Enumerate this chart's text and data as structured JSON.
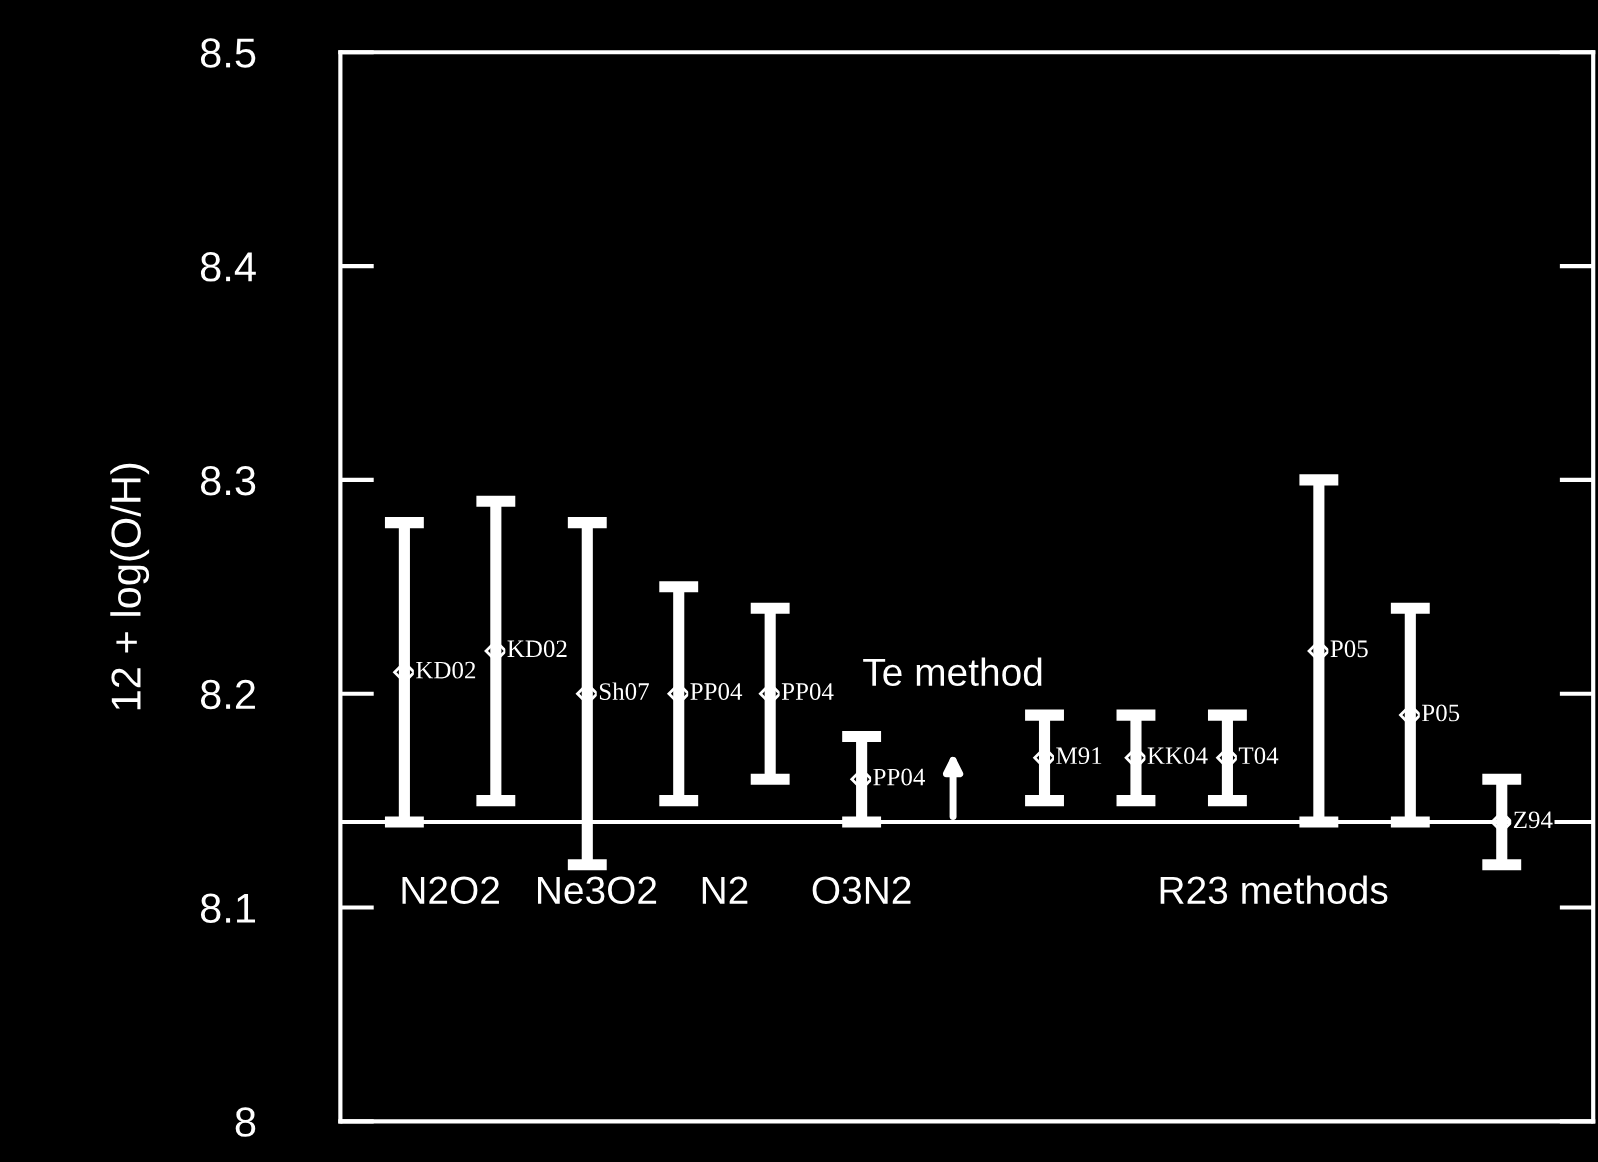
{
  "chart_data": {
    "type": "scatter",
    "ylabel": "12 + log(O/H)",
    "categories": [
      null,
      null,
      null,
      null,
      null,
      null,
      null,
      null,
      null,
      null,
      null,
      null,
      null
    ],
    "series": [
      {
        "color": "#ffffff",
        "values": [
          8.21,
          8.22,
          8.2,
          8.2,
          8.2,
          8.16,
          null,
          8.17,
          8.17,
          8.17,
          8.22,
          8.19,
          8.14
        ],
        "errors": [
          [
            8.14,
            8.28
          ],
          [
            8.15,
            8.29
          ],
          [
            8.12,
            8.28
          ],
          [
            8.15,
            8.25
          ],
          [
            8.16,
            8.24
          ],
          [
            8.14,
            8.18
          ],
          null,
          [
            8.15,
            8.19
          ],
          [
            8.15,
            8.19
          ],
          [
            8.15,
            8.19
          ],
          [
            8.14,
            8.3
          ],
          [
            8.14,
            8.24
          ],
          [
            8.12,
            8.16
          ]
        ],
        "value_labels": [
          "KD02",
          "KD02",
          "Sh07",
          "PP04",
          "PP04",
          "PP04",
          null,
          "M91",
          "KK04",
          "T04",
          "P05",
          "P05",
          "Z94"
        ]
      }
    ],
    "ylim": [
      8,
      8.5
    ],
    "yticks": [
      8,
      8.1,
      8.2,
      8.3,
      8.4,
      8.5
    ],
    "tick_labels": "y",
    "grid": false,
    "legend": false,
    "marker": "diamond",
    "ref_lines": [
      {
        "axis": "y",
        "value": 8.14,
        "color": "#ffffff"
      }
    ],
    "annotations": [
      "N2O2",
      "Ne3O2",
      "N2",
      "O3N2",
      "Te method",
      "R23 methods"
    ]
  }
}
